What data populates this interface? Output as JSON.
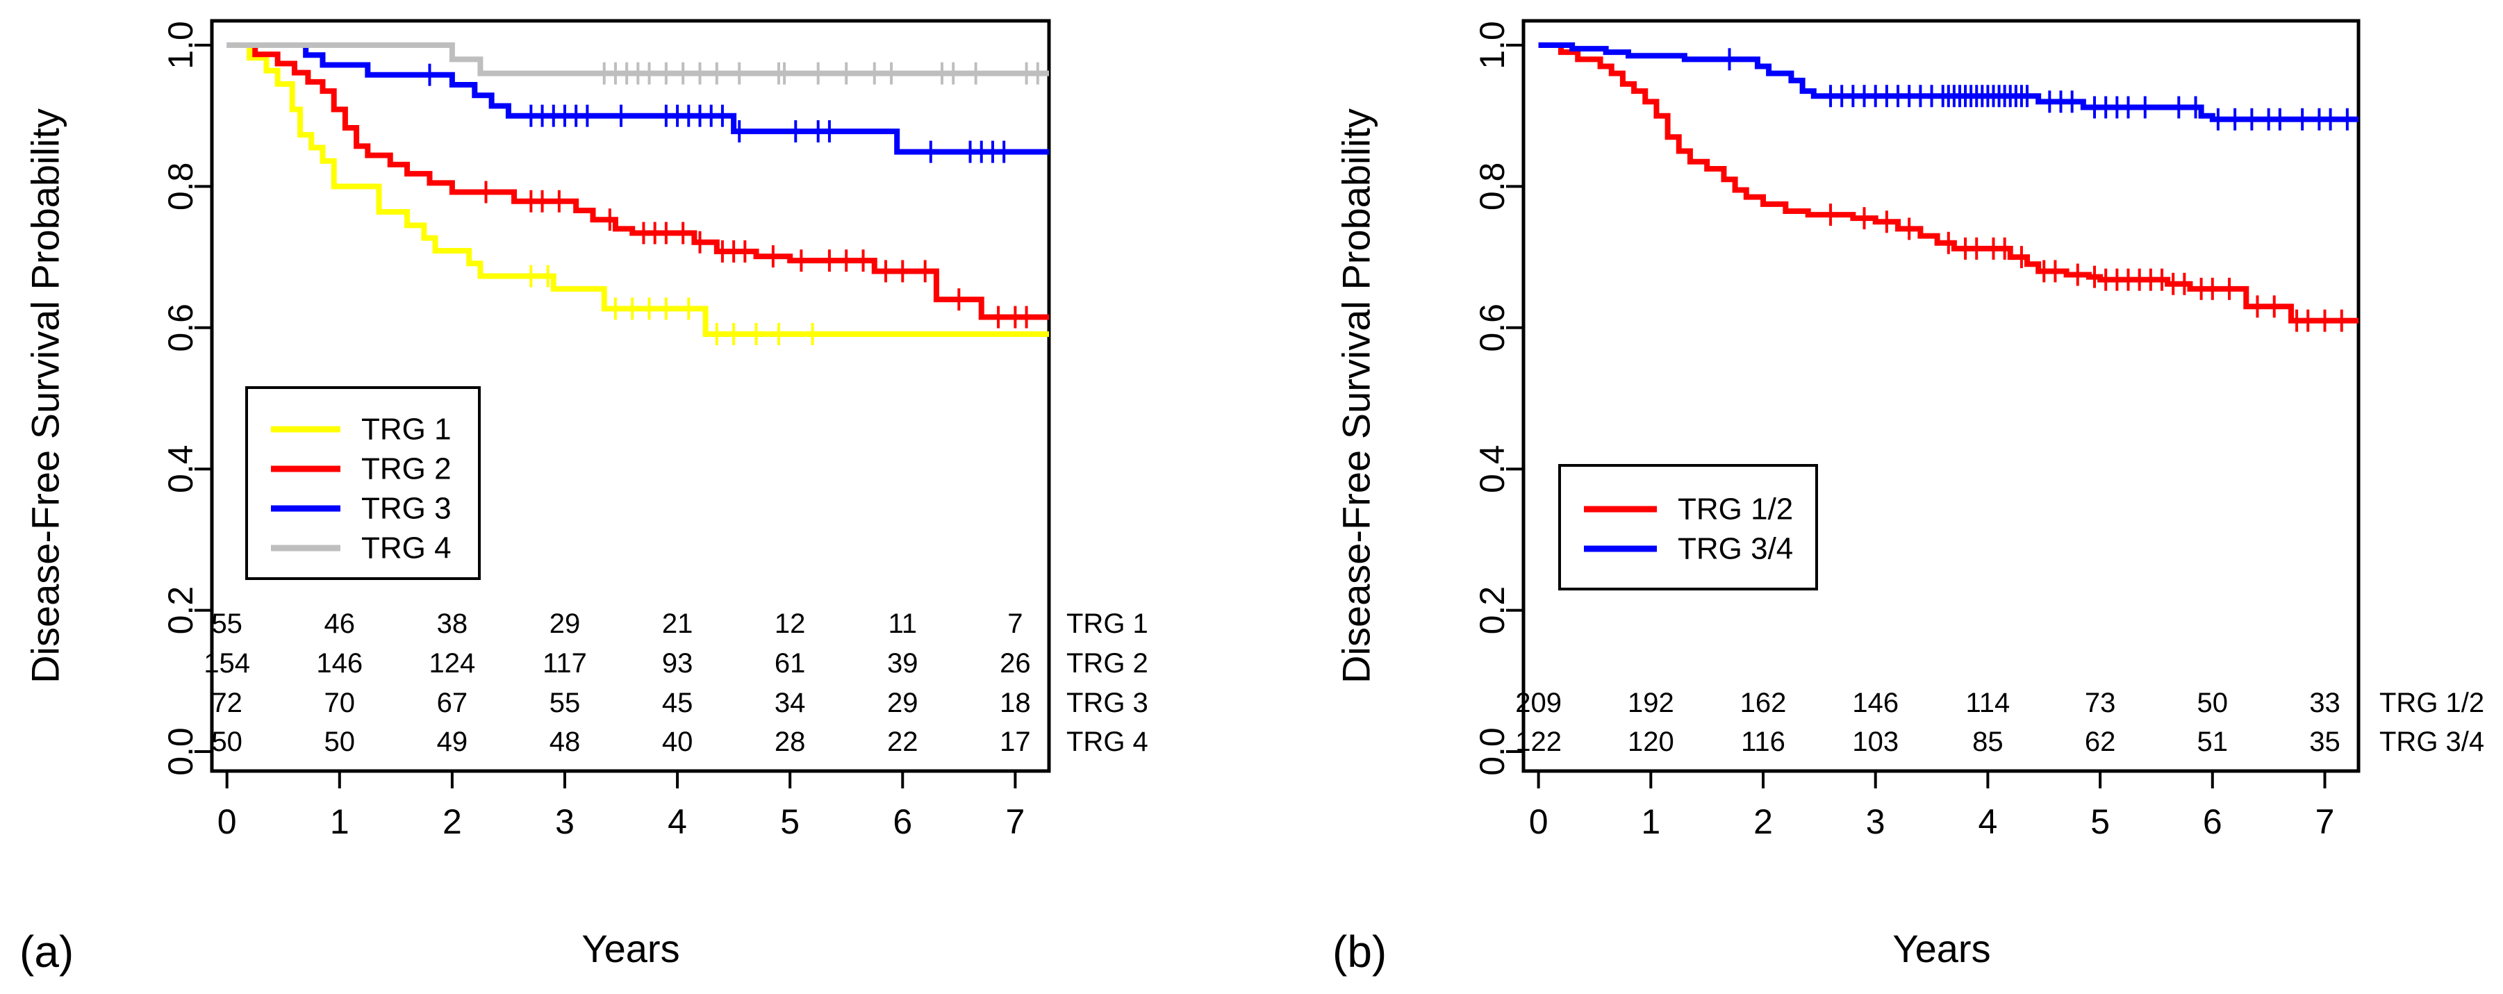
{
  "chart_data": [
    {
      "type": "line",
      "subtype": "kaplan-meier",
      "panel_label": "(a)",
      "xlabel": "Years",
      "ylabel": "Disease-Free Survival Probability",
      "xlim": [
        0,
        7.3
      ],
      "ylim": [
        0,
        1
      ],
      "xticks": [
        "0",
        "1",
        "2",
        "3",
        "4",
        "5",
        "6",
        "7"
      ],
      "yticks": [
        "0.0",
        "0.2",
        "0.4",
        "0.6",
        "0.8",
        "1.0"
      ],
      "legend_position": "middle-left",
      "risk_times": [
        0,
        1,
        2,
        3,
        4,
        5,
        6,
        7
      ],
      "series": [
        {
          "name": "TRG 1",
          "color": "#ffff00",
          "steps": [
            [
              0,
              1.0
            ],
            [
              0.2,
              0.982
            ],
            [
              0.35,
              0.964
            ],
            [
              0.45,
              0.945
            ],
            [
              0.58,
              0.909
            ],
            [
              0.65,
              0.873
            ],
            [
              0.75,
              0.855
            ],
            [
              0.85,
              0.836
            ],
            [
              0.95,
              0.8
            ],
            [
              1.1,
              0.8
            ],
            [
              1.35,
              0.764
            ],
            [
              1.6,
              0.745
            ],
            [
              1.75,
              0.727
            ],
            [
              1.85,
              0.709
            ],
            [
              2.15,
              0.691
            ],
            [
              2.25,
              0.673
            ],
            [
              2.55,
              0.673
            ],
            [
              2.9,
              0.655
            ],
            [
              3.1,
              0.655
            ],
            [
              3.35,
              0.627
            ],
            [
              3.8,
              0.627
            ],
            [
              4.25,
              0.591
            ],
            [
              7.3,
              0.591
            ]
          ],
          "censor_times": [
            2.7,
            2.85,
            3.45,
            3.6,
            3.75,
            3.9,
            4.1,
            4.35,
            4.5,
            4.7,
            4.9,
            5.2
          ],
          "at_risk": [
            "55",
            "46",
            "38",
            "29",
            "21",
            "12",
            "11",
            "7"
          ]
        },
        {
          "name": "TRG 2",
          "color": "#ff0000",
          "steps": [
            [
              0,
              1.0
            ],
            [
              0.25,
              0.987
            ],
            [
              0.45,
              0.974
            ],
            [
              0.6,
              0.961
            ],
            [
              0.72,
              0.948
            ],
            [
              0.85,
              0.935
            ],
            [
              0.95,
              0.909
            ],
            [
              1.05,
              0.883
            ],
            [
              1.15,
              0.857
            ],
            [
              1.25,
              0.844
            ],
            [
              1.45,
              0.831
            ],
            [
              1.6,
              0.818
            ],
            [
              1.8,
              0.805
            ],
            [
              2.0,
              0.792
            ],
            [
              2.2,
              0.792
            ],
            [
              2.55,
              0.779
            ],
            [
              2.9,
              0.779
            ],
            [
              3.1,
              0.766
            ],
            [
              3.25,
              0.753
            ],
            [
              3.45,
              0.74
            ],
            [
              3.6,
              0.734
            ],
            [
              4.0,
              0.734
            ],
            [
              4.15,
              0.721
            ],
            [
              4.35,
              0.708
            ],
            [
              4.7,
              0.701
            ],
            [
              5.0,
              0.695
            ],
            [
              5.25,
              0.695
            ],
            [
              5.75,
              0.68
            ],
            [
              6.3,
              0.64
            ],
            [
              6.7,
              0.615
            ],
            [
              7.3,
              0.615
            ]
          ],
          "censor_times": [
            2.3,
            2.7,
            2.8,
            2.95,
            3.4,
            3.7,
            3.8,
            3.9,
            4.05,
            4.2,
            4.4,
            4.5,
            4.6,
            4.85,
            5.1,
            5.35,
            5.5,
            5.65,
            5.85,
            6.0,
            6.2,
            6.5,
            6.85,
            7.0,
            7.1
          ],
          "at_risk": [
            "154",
            "146",
            "124",
            "117",
            "93",
            "61",
            "39",
            "26"
          ]
        },
        {
          "name": "TRG 3",
          "color": "#0000ff",
          "steps": [
            [
              0,
              1.0
            ],
            [
              0.7,
              0.986
            ],
            [
              0.85,
              0.972
            ],
            [
              1.25,
              0.958
            ],
            [
              1.7,
              0.958
            ],
            [
              2.0,
              0.944
            ],
            [
              2.2,
              0.929
            ],
            [
              2.35,
              0.914
            ],
            [
              2.5,
              0.9
            ],
            [
              4.5,
              0.878
            ],
            [
              5.95,
              0.849
            ],
            [
              7.3,
              0.849
            ]
          ],
          "censor_times": [
            1.8,
            2.7,
            2.8,
            2.9,
            3.0,
            3.1,
            3.2,
            3.5,
            3.9,
            4.0,
            4.1,
            4.2,
            4.3,
            4.4,
            4.55,
            5.05,
            5.25,
            5.35,
            6.25,
            6.6,
            6.7,
            6.8,
            6.9
          ],
          "at_risk": [
            "72",
            "70",
            "67",
            "55",
            "45",
            "34",
            "29",
            "18"
          ]
        },
        {
          "name": "TRG 4",
          "color": "#bebebe",
          "steps": [
            [
              0,
              1.0
            ],
            [
              2.0,
              0.98
            ],
            [
              2.25,
              0.96
            ],
            [
              7.3,
              0.96
            ]
          ],
          "censor_times": [
            3.35,
            3.45,
            3.55,
            3.65,
            3.75,
            3.9,
            4.05,
            4.2,
            4.35,
            4.55,
            4.9,
            4.95,
            5.25,
            5.5,
            5.75,
            5.9,
            6.35,
            6.45,
            6.65,
            7.1,
            7.2
          ],
          "at_risk": [
            "50",
            "50",
            "49",
            "48",
            "40",
            "28",
            "22",
            "17"
          ]
        }
      ]
    },
    {
      "type": "line",
      "subtype": "kaplan-meier",
      "panel_label": "(b)",
      "xlabel": "Years",
      "ylabel": "Disease-Free Survival Probability",
      "xlim": [
        0,
        7.3
      ],
      "ylim": [
        0,
        1
      ],
      "xticks": [
        "0",
        "1",
        "2",
        "3",
        "4",
        "5",
        "6",
        "7"
      ],
      "yticks": [
        "0.0",
        "0.2",
        "0.4",
        "0.6",
        "0.8",
        "1.0"
      ],
      "legend_position": "lower-left",
      "risk_times": [
        0,
        1,
        2,
        3,
        4,
        5,
        6,
        7
      ],
      "series": [
        {
          "name": "TRG 1/2",
          "color": "#ff0000",
          "steps": [
            [
              0,
              1.0
            ],
            [
              0.2,
              0.99
            ],
            [
              0.35,
              0.98
            ],
            [
              0.55,
              0.97
            ],
            [
              0.65,
              0.96
            ],
            [
              0.75,
              0.945
            ],
            [
              0.85,
              0.935
            ],
            [
              0.95,
              0.92
            ],
            [
              1.05,
              0.9
            ],
            [
              1.15,
              0.87
            ],
            [
              1.25,
              0.85
            ],
            [
              1.35,
              0.835
            ],
            [
              1.5,
              0.825
            ],
            [
              1.65,
              0.81
            ],
            [
              1.75,
              0.795
            ],
            [
              1.85,
              0.785
            ],
            [
              2.0,
              0.775
            ],
            [
              2.2,
              0.765
            ],
            [
              2.4,
              0.76
            ],
            [
              2.8,
              0.755
            ],
            [
              3.0,
              0.75
            ],
            [
              3.2,
              0.74
            ],
            [
              3.4,
              0.73
            ],
            [
              3.55,
              0.72
            ],
            [
              3.7,
              0.712
            ],
            [
              4.0,
              0.712
            ],
            [
              4.2,
              0.7
            ],
            [
              4.35,
              0.69
            ],
            [
              4.45,
              0.68
            ],
            [
              4.7,
              0.675
            ],
            [
              4.9,
              0.672
            ],
            [
              5.0,
              0.668
            ],
            [
              5.6,
              0.662
            ],
            [
              5.8,
              0.655
            ],
            [
              6.3,
              0.63
            ],
            [
              6.7,
              0.61
            ],
            [
              7.3,
              0.61
            ]
          ],
          "censor_times": [
            2.6,
            2.9,
            3.1,
            3.3,
            3.65,
            3.8,
            3.9,
            4.05,
            4.15,
            4.3,
            4.5,
            4.6,
            4.8,
            4.95,
            5.05,
            5.15,
            5.25,
            5.35,
            5.45,
            5.55,
            5.65,
            5.75,
            5.9,
            6.0,
            6.15,
            6.4,
            6.55,
            6.75,
            6.85,
            7.0,
            7.15
          ],
          "at_risk": [
            "209",
            "192",
            "162",
            "146",
            "114",
            "73",
            "50",
            "33"
          ]
        },
        {
          "name": "TRG 3/4",
          "color": "#0000ff",
          "steps": [
            [
              0,
              1.0
            ],
            [
              0.3,
              0.995
            ],
            [
              0.6,
              0.99
            ],
            [
              0.8,
              0.985
            ],
            [
              1.3,
              0.98
            ],
            [
              1.95,
              0.97
            ],
            [
              2.05,
              0.96
            ],
            [
              2.25,
              0.95
            ],
            [
              2.35,
              0.935
            ],
            [
              2.45,
              0.928
            ],
            [
              4.45,
              0.92
            ],
            [
              4.85,
              0.912
            ],
            [
              5.9,
              0.9
            ],
            [
              6.0,
              0.895
            ],
            [
              7.3,
              0.895
            ]
          ],
          "censor_times": [
            1.7,
            2.6,
            2.7,
            2.8,
            2.9,
            3.0,
            3.1,
            3.2,
            3.3,
            3.4,
            3.5,
            3.6,
            3.65,
            3.7,
            3.75,
            3.8,
            3.85,
            3.9,
            3.95,
            4.0,
            4.05,
            4.1,
            4.15,
            4.2,
            4.25,
            4.3,
            4.35,
            4.55,
            4.65,
            4.75,
            4.95,
            5.05,
            5.15,
            5.25,
            5.4,
            5.7,
            5.85,
            6.05,
            6.2,
            6.35,
            6.5,
            6.6,
            6.8,
            6.95,
            7.05,
            7.2
          ],
          "at_risk": [
            "122",
            "120",
            "116",
            "103",
            "85",
            "62",
            "51",
            "35"
          ]
        }
      ]
    }
  ]
}
